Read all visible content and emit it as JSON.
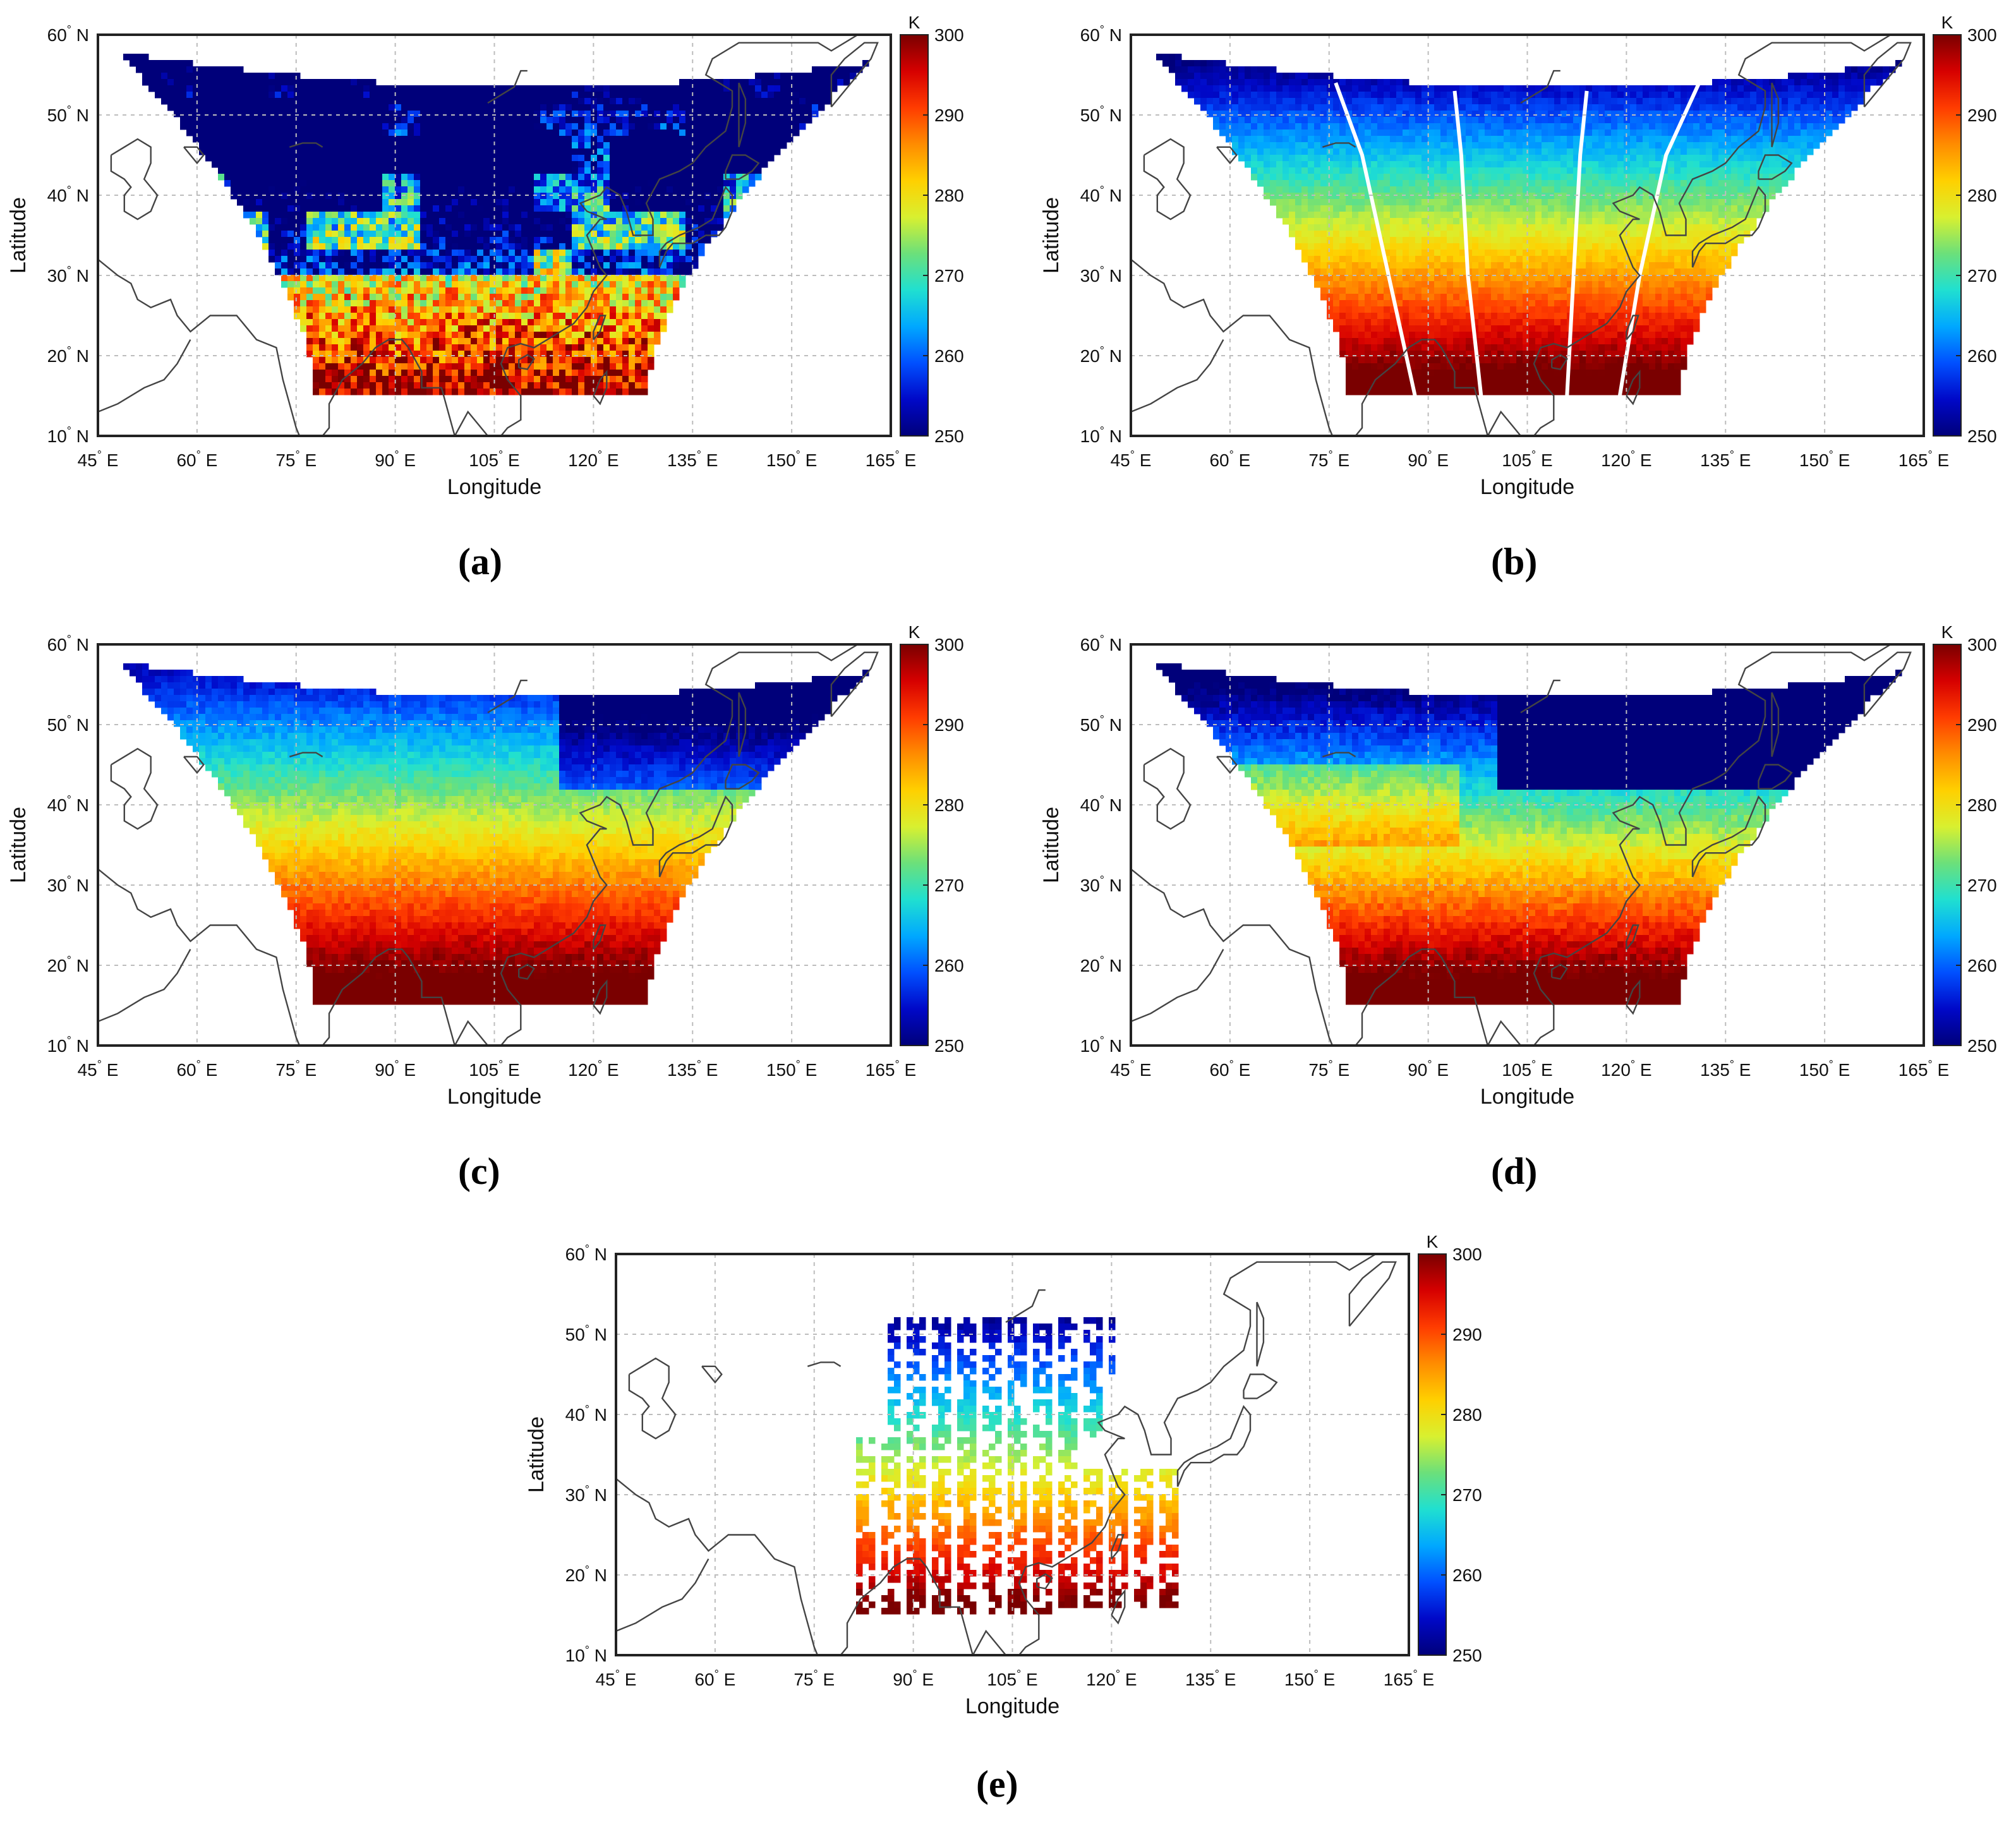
{
  "colorbar": {
    "unit": "K",
    "ticks": [
      "300",
      "290",
      "280",
      "270",
      "260",
      "250"
    ],
    "stops": [
      "#7a0000",
      "#d60000",
      "#ff3c00",
      "#ff8c00",
      "#ffd000",
      "#d8f030",
      "#6ce07a",
      "#20e0d0",
      "#00a8ff",
      "#0050ff",
      "#0008c8",
      "#00007a"
    ]
  },
  "axes": {
    "x_ticks": [
      {
        "deg": "45",
        "dir": "E"
      },
      {
        "deg": "60",
        "dir": "E"
      },
      {
        "deg": "75",
        "dir": "E"
      },
      {
        "deg": "90",
        "dir": "E"
      },
      {
        "deg": "105",
        "dir": "E"
      },
      {
        "deg": "120",
        "dir": "E"
      },
      {
        "deg": "135",
        "dir": "E"
      },
      {
        "deg": "150",
        "dir": "E"
      },
      {
        "deg": "165",
        "dir": "E"
      }
    ],
    "y_ticks": [
      {
        "deg": "60",
        "dir": "N"
      },
      {
        "deg": "50",
        "dir": "N"
      },
      {
        "deg": "40",
        "dir": "N"
      },
      {
        "deg": "30",
        "dir": "N"
      },
      {
        "deg": "20",
        "dir": "N"
      },
      {
        "deg": "10",
        "dir": "N"
      }
    ],
    "degree_symbol": "°",
    "xlabel": "Longitude",
    "ylabel": "Latitude"
  },
  "panels": [
    {
      "id": "a",
      "caption": "(a)",
      "style": "noisy"
    },
    {
      "id": "b",
      "caption": "(b)",
      "style": "gradient-swaths"
    },
    {
      "id": "c",
      "caption": "(c)",
      "style": "gradient-warm"
    },
    {
      "id": "d",
      "caption": "(d)",
      "style": "gradient-cold"
    },
    {
      "id": "e",
      "caption": "(e)",
      "style": "sparse"
    }
  ]
}
